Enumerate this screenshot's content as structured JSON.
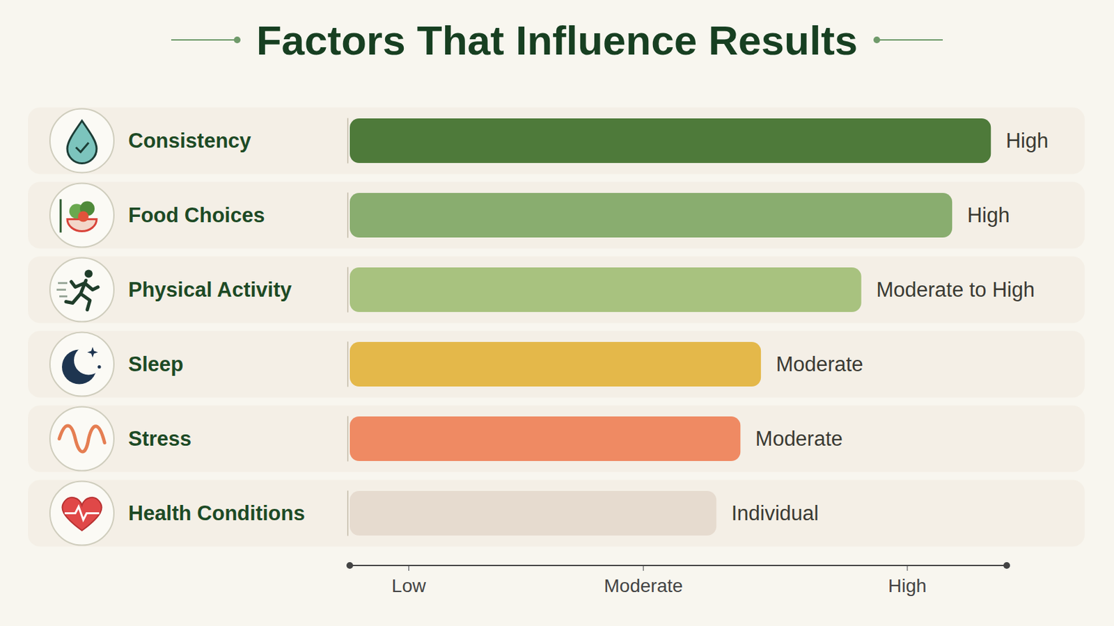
{
  "chart_data": {
    "type": "bar",
    "title": "Factors That Influence Results",
    "orientation": "horizontal",
    "categories": [
      "Consistency",
      "Food Choices",
      "Physical Activity",
      "Sleep",
      "Stress",
      "Health Conditions"
    ],
    "values": [
      109.3,
      102.7,
      87.2,
      70.1,
      66.6,
      62.5
    ],
    "value_labels": [
      "High",
      "High",
      "Moderate to High",
      "Moderate",
      "Moderate",
      "Individual"
    ],
    "data_labels": true,
    "colors": [
      "#4e7a3a",
      "#89ad6f",
      "#a8c27f",
      "#e4b84a",
      "#ef8a63",
      "#e6dbcf"
    ],
    "xlim": [
      0,
      112
    ],
    "xticks": [
      {
        "value": 10,
        "label": "Low"
      },
      {
        "value": 50,
        "label": "Moderate"
      },
      {
        "value": 95,
        "label": "High"
      }
    ]
  }
}
